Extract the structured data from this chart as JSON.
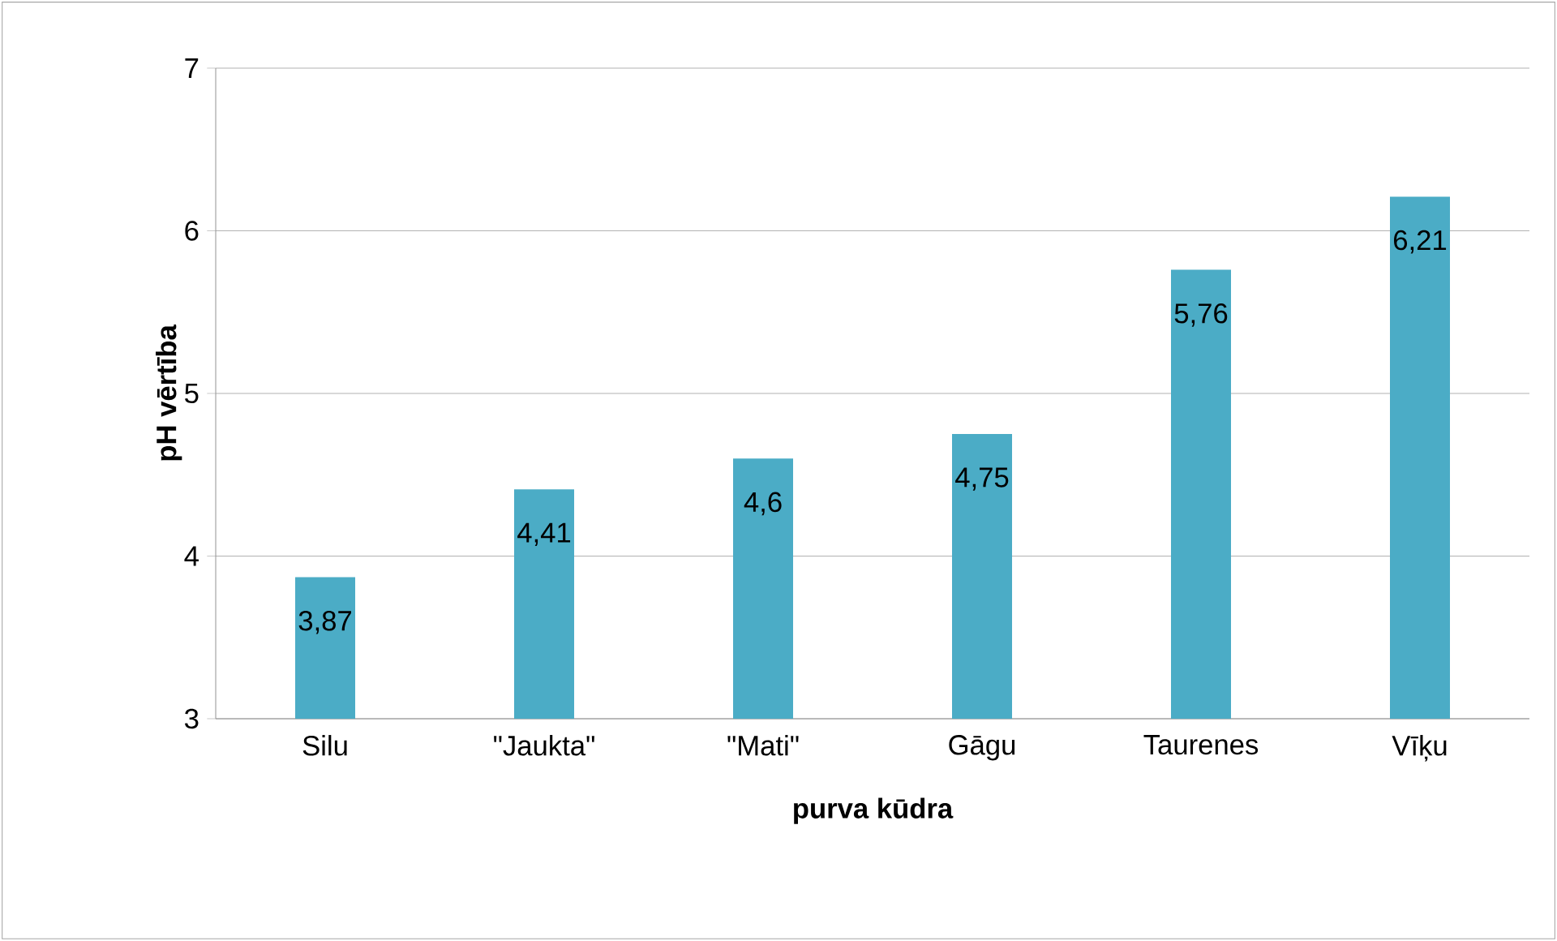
{
  "chart_data": {
    "type": "bar",
    "xlabel": "purva kūdra",
    "ylabel": "pH vērtība",
    "categories": [
      "Silu",
      "\"Jaukta\"",
      "\"Mati\"",
      "Gāgu",
      "Taurenes",
      "Vīķu"
    ],
    "values": [
      3.87,
      4.41,
      4.6,
      4.75,
      5.76,
      6.21
    ],
    "value_labels": [
      "3,87",
      "4,41",
      "4,6",
      "4,75",
      "5,76",
      "6,21"
    ],
    "color": "#4bacc6",
    "ylim": [
      3,
      7
    ],
    "yticks": [
      3,
      4,
      5,
      6,
      7
    ],
    "grid": "y"
  }
}
